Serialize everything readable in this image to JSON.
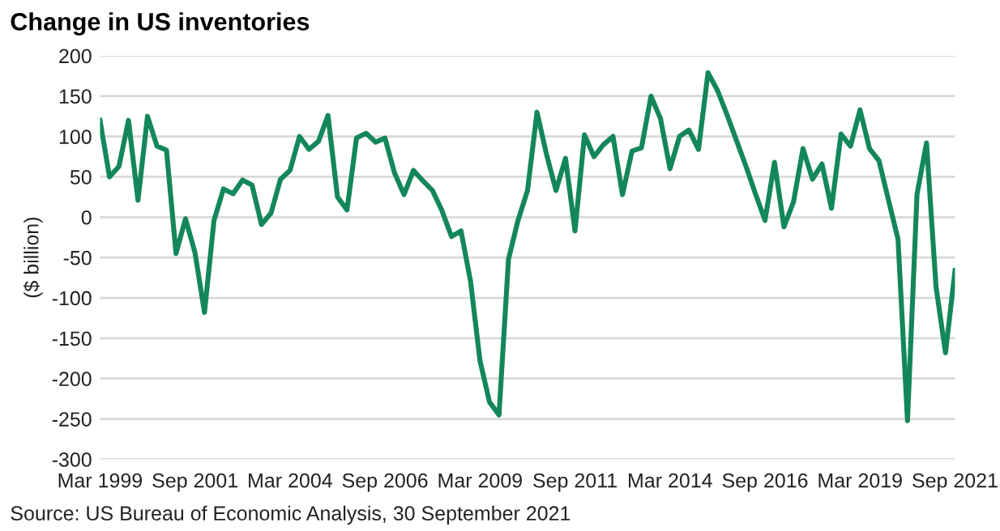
{
  "chart_data": {
    "type": "line",
    "title": "Change in US inventories",
    "ylabel": "($ billion)",
    "categories": [
      "Mar 1999",
      null,
      null,
      null,
      null,
      null,
      null,
      null,
      null,
      null,
      "Sep 2001",
      null,
      null,
      null,
      null,
      null,
      null,
      null,
      null,
      null,
      "Mar 2004",
      null,
      null,
      null,
      null,
      null,
      null,
      null,
      null,
      null,
      "Sep 2006",
      null,
      null,
      null,
      null,
      null,
      null,
      null,
      null,
      null,
      "Mar 2009",
      null,
      null,
      null,
      null,
      null,
      null,
      null,
      null,
      null,
      "Sep 2011",
      null,
      null,
      null,
      null,
      null,
      null,
      null,
      null,
      null,
      "Mar 2014",
      null,
      null,
      null,
      null,
      null,
      null,
      null,
      null,
      null,
      "Sep 2016",
      null,
      null,
      null,
      null,
      null,
      null,
      null,
      null,
      null,
      "Mar 2019",
      null,
      null,
      null,
      null,
      null,
      null,
      null,
      null,
      null,
      "Sep 2021"
    ],
    "series": [
      {
        "color": "#14875a",
        "values": [
          120,
          50,
          63,
          120,
          21,
          125,
          88,
          83,
          -45,
          -2,
          -44,
          -118,
          -4,
          35,
          29,
          46,
          40,
          -9,
          5,
          47,
          58,
          100,
          84,
          94,
          126,
          25,
          9,
          98,
          104,
          93,
          98,
          55,
          28,
          58,
          45,
          33,
          8,
          -24,
          -17,
          -79,
          -178,
          -229,
          -245,
          -52,
          -4,
          33,
          130,
          78,
          33,
          73,
          -17,
          102,
          75,
          90,
          100,
          28,
          82,
          86,
          150,
          122,
          60,
          100,
          108,
          84,
          179,
          157,
          127,
          95,
          63,
          29,
          -4,
          68,
          -12,
          19,
          85,
          47,
          66,
          11,
          103,
          88,
          133,
          85,
          70,
          21,
          -27,
          -252,
          28,
          92,
          -86,
          -168,
          -66
        ]
      }
    ],
    "ylim": [
      -300,
      200
    ],
    "yticks": [
      -300,
      -250,
      -200,
      -150,
      -100,
      -50,
      0,
      50,
      100,
      150,
      200
    ],
    "grid": "y",
    "line_style": "solid",
    "marker": "none",
    "annotations": [
      "Source: US Bureau of Economic Analysis, 30 September 2021"
    ]
  }
}
